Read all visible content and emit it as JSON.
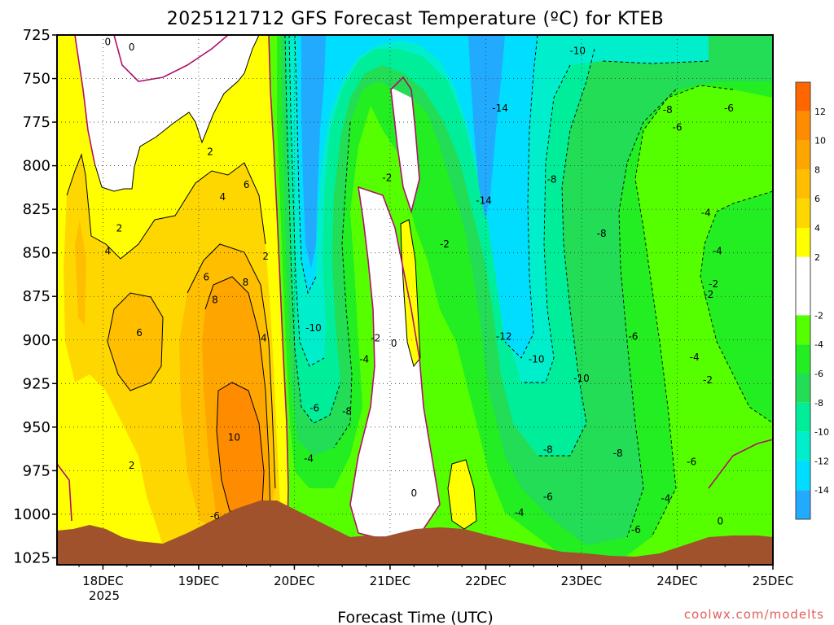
{
  "chart_data": {
    "type": "heatmap",
    "title": "2025121712 GFS Forecast Temperature (ºC) for KTEB",
    "xlabel": "Forecast Time (UTC)",
    "credit": "coolwx.com/modelts",
    "y_ticks": [
      "725",
      "750",
      "775",
      "800",
      "825",
      "850",
      "875",
      "900",
      "925",
      "950",
      "975",
      "1000",
      "1025"
    ],
    "x_ticks": [
      "18DEC",
      "19DEC",
      "20DEC",
      "21DEC",
      "22DEC",
      "23DEC",
      "24DEC",
      "25DEC"
    ],
    "x_sublabel": "2025",
    "colorbar": {
      "ticks": [
        "12",
        "10",
        "8",
        "6",
        "4",
        "2",
        "-2",
        "-4",
        "-6",
        "-8",
        "-10",
        "-12",
        "-14"
      ],
      "bands": [
        {
          "min": 12,
          "max": 14,
          "color": "#ff6600"
        },
        {
          "min": 10,
          "max": 12,
          "color": "#ff8c00"
        },
        {
          "min": 8,
          "max": 10,
          "color": "#ffa500"
        },
        {
          "min": 6,
          "max": 8,
          "color": "#ffbf00"
        },
        {
          "min": 4,
          "max": 6,
          "color": "#ffd700"
        },
        {
          "min": 2,
          "max": 4,
          "color": "#ffff00"
        },
        {
          "min": -2,
          "max": 2,
          "color": "#ffffff"
        },
        {
          "min": -4,
          "max": -2,
          "color": "#55ff00"
        },
        {
          "min": -6,
          "max": -4,
          "color": "#22ee22"
        },
        {
          "min": -8,
          "max": -6,
          "color": "#22dd55"
        },
        {
          "min": -10,
          "max": -8,
          "color": "#00ee99"
        },
        {
          "min": -12,
          "max": -10,
          "color": "#00eecc"
        },
        {
          "min": -14,
          "max": -12,
          "color": "#00ddff"
        },
        {
          "min": -16,
          "max": -14,
          "color": "#22aaff"
        }
      ]
    },
    "contour_labels": [
      {
        "t": "0",
        "x": 18.05,
        "p": 729
      },
      {
        "t": "0",
        "x": 18.3,
        "p": 732
      },
      {
        "t": "-10",
        "x": 22.96,
        "p": 734
      },
      {
        "t": "-14",
        "x": 22.15,
        "p": 767
      },
      {
        "t": "-8",
        "x": 23.9,
        "p": 768
      },
      {
        "t": "-6",
        "x": 24.54,
        "p": 767
      },
      {
        "t": "2",
        "x": 19.12,
        "p": 792
      },
      {
        "t": "-6",
        "x": 24.0,
        "p": 778
      },
      {
        "t": "6",
        "x": 19.5,
        "p": 811
      },
      {
        "t": "-2",
        "x": 20.97,
        "p": 807
      },
      {
        "t": "-8",
        "x": 22.69,
        "p": 808
      },
      {
        "t": "4",
        "x": 19.25,
        "p": 818
      },
      {
        "t": "-14",
        "x": 21.98,
        "p": 820
      },
      {
        "t": "-4",
        "x": 24.3,
        "p": 827
      },
      {
        "t": "2",
        "x": 18.17,
        "p": 836
      },
      {
        "t": "-2",
        "x": 21.57,
        "p": 845
      },
      {
        "t": "-8",
        "x": 23.21,
        "p": 839
      },
      {
        "t": "2",
        "x": 19.7,
        "p": 852
      },
      {
        "t": "4",
        "x": 18.05,
        "p": 849
      },
      {
        "t": "-4",
        "x": 24.42,
        "p": 849
      },
      {
        "t": "6",
        "x": 19.08,
        "p": 864
      },
      {
        "t": "8",
        "x": 19.49,
        "p": 867
      },
      {
        "t": "-2",
        "x": 24.38,
        "p": 868
      },
      {
        "t": "8",
        "x": 19.17,
        "p": 877
      },
      {
        "t": "-2",
        "x": 24.33,
        "p": 874
      },
      {
        "t": "6",
        "x": 18.38,
        "p": 896
      },
      {
        "t": "-10",
        "x": 20.2,
        "p": 893
      },
      {
        "t": "4",
        "x": 19.68,
        "p": 899
      },
      {
        "t": "-2",
        "x": 20.85,
        "p": 899
      },
      {
        "t": "0",
        "x": 21.04,
        "p": 902
      },
      {
        "t": "-12",
        "x": 22.19,
        "p": 898
      },
      {
        "t": "-6",
        "x": 23.54,
        "p": 898
      },
      {
        "t": "-4",
        "x": 20.73,
        "p": 911
      },
      {
        "t": "-10",
        "x": 22.53,
        "p": 911
      },
      {
        "t": "-4",
        "x": 24.18,
        "p": 910
      },
      {
        "t": "-10",
        "x": 23.0,
        "p": 922
      },
      {
        "t": "-2",
        "x": 24.32,
        "p": 923
      },
      {
        "t": "-6",
        "x": 20.21,
        "p": 939
      },
      {
        "t": "-8",
        "x": 20.55,
        "p": 941
      },
      {
        "t": "10",
        "x": 19.37,
        "p": 956
      },
      {
        "t": "-8",
        "x": 22.65,
        "p": 963
      },
      {
        "t": "-8",
        "x": 23.38,
        "p": 965
      },
      {
        "t": "2",
        "x": 18.3,
        "p": 972
      },
      {
        "t": "-4",
        "x": 20.15,
        "p": 968
      },
      {
        "t": "-6",
        "x": 24.15,
        "p": 970
      },
      {
        "t": "0",
        "x": 21.25,
        "p": 988
      },
      {
        "t": "-6",
        "x": 22.65,
        "p": 990
      },
      {
        "t": "-4",
        "x": 23.88,
        "p": 991
      },
      {
        "t": "-4",
        "x": 22.35,
        "p": 999
      },
      {
        "t": "-6",
        "x": 19.17,
        "p": 1001
      },
      {
        "t": "-6",
        "x": 23.57,
        "p": 1009
      },
      {
        "t": "0",
        "x": 24.45,
        "p": 1004
      }
    ]
  }
}
